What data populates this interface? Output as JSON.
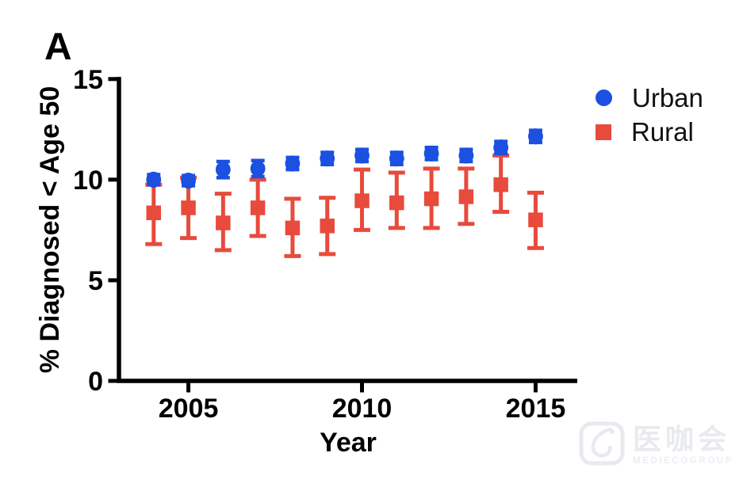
{
  "figure": {
    "panel_label": "A",
    "background": "#ffffff"
  },
  "legend": {
    "items": [
      {
        "label": "Urban",
        "marker": "circle-icon",
        "color": "#1B50E1"
      },
      {
        "label": "Rural",
        "marker": "square-icon",
        "color": "#E84A3C"
      }
    ]
  },
  "watermark": {
    "icon": "rounded-square-sparkle-icon",
    "cjk_text": "医咖会",
    "latin_text": "MEDIECOGROUP",
    "color": "#dfe3ea"
  },
  "chart_data": {
    "type": "scatter",
    "title": "",
    "xlabel": "Year",
    "ylabel": "% Diagnosed < Age 50",
    "x_ticks": [
      2005,
      2010,
      2015
    ],
    "y_ticks": [
      0,
      5,
      10,
      15
    ],
    "xlim": [
      2003.0,
      2016.2
    ],
    "ylim": [
      0,
      15
    ],
    "grid": false,
    "legend_position": "right",
    "x": [
      2004,
      2005,
      2006,
      2007,
      2008,
      2009,
      2010,
      2011,
      2012,
      2013,
      2014,
      2015
    ],
    "series": [
      {
        "name": "Urban",
        "marker": "circle",
        "color": "#1B50E1",
        "values": [
          10.0,
          9.95,
          10.5,
          10.55,
          10.8,
          11.05,
          11.2,
          11.05,
          11.3,
          11.2,
          11.6,
          12.15
        ],
        "error_low": [
          9.75,
          9.7,
          10.1,
          10.15,
          10.5,
          10.75,
          10.9,
          10.75,
          11.0,
          10.9,
          11.3,
          11.85
        ],
        "error_high": [
          10.25,
          10.2,
          10.9,
          10.95,
          11.1,
          11.35,
          11.5,
          11.35,
          11.6,
          11.5,
          11.9,
          12.45
        ]
      },
      {
        "name": "Rural",
        "marker": "square",
        "color": "#E84A3C",
        "values": [
          8.35,
          8.6,
          7.85,
          8.6,
          7.6,
          7.7,
          8.95,
          8.85,
          9.05,
          9.15,
          9.75,
          8.0
        ],
        "error_low": [
          6.8,
          7.1,
          6.5,
          7.2,
          6.2,
          6.3,
          7.5,
          7.6,
          7.6,
          7.8,
          8.4,
          6.6
        ],
        "error_high": [
          9.75,
          10.1,
          9.3,
          10.0,
          9.05,
          9.1,
          10.5,
          10.35,
          10.55,
          10.55,
          11.2,
          9.35
        ]
      }
    ]
  }
}
